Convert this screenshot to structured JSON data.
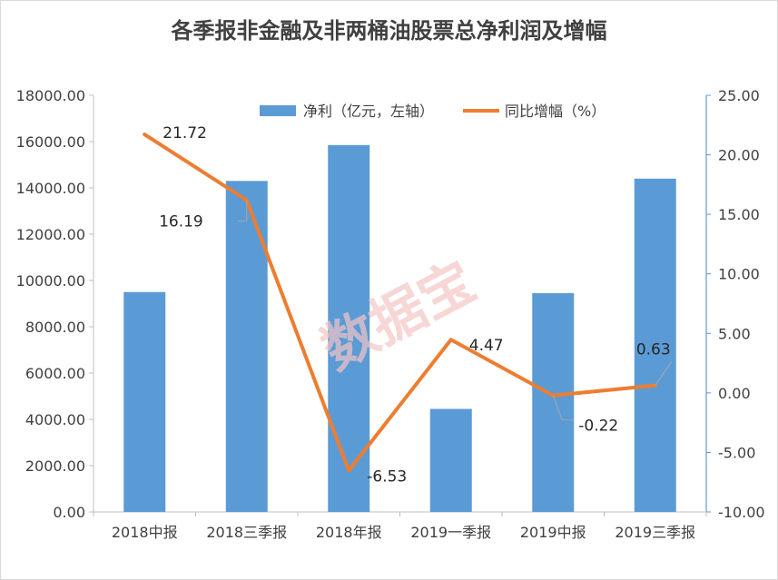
{
  "chart_data": {
    "type": "bar",
    "title": "各季报非金融及非两桶油股票总净利润及增幅",
    "categories": [
      "2018中报",
      "2018三季报",
      "2018年报",
      "2019一季报",
      "2019中报",
      "2019三季报"
    ],
    "series": [
      {
        "name": "净利（亿元，左轴）",
        "type": "bar",
        "axis": "left",
        "color": "#5b9bd5",
        "values": [
          9500,
          14300,
          15850,
          4450,
          9450,
          14400
        ]
      },
      {
        "name": "同比增幅（%）",
        "type": "line",
        "axis": "right",
        "color": "#ed7d31",
        "values": [
          21.72,
          16.19,
          -6.53,
          4.47,
          -0.22,
          0.63
        ],
        "data_labels": [
          "21.72",
          "16.19",
          "-6.53",
          "4.47",
          "-0.22",
          "0.63"
        ]
      }
    ],
    "y_left": {
      "min": 0,
      "max": 18000,
      "ticks": [
        "0.00",
        "2000.00",
        "4000.00",
        "6000.00",
        "8000.00",
        "10000.00",
        "12000.00",
        "14000.00",
        "16000.00",
        "18000.00"
      ]
    },
    "y_right": {
      "min": -10,
      "max": 25,
      "ticks": [
        "-10.00",
        "-5.00",
        "0.00",
        "5.00",
        "10.00",
        "15.00",
        "20.00",
        "25.00"
      ]
    },
    "grid": false,
    "legend": "top"
  },
  "watermark": "数据宝"
}
